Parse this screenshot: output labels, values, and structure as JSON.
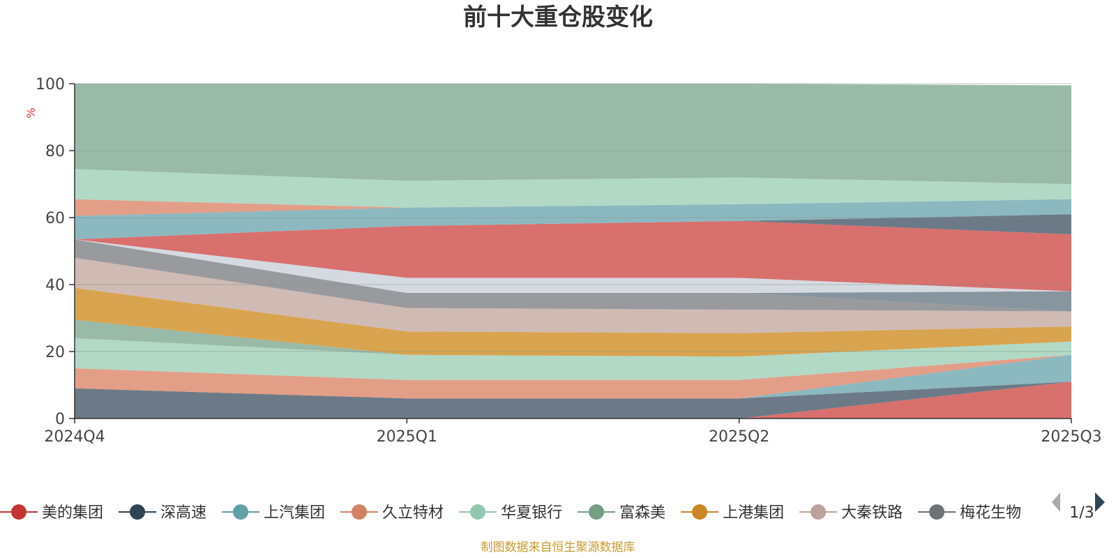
{
  "chart_data": {
    "type": "area",
    "title": "前十大重仓股变化",
    "ylabel": "%",
    "ylim": [
      0,
      100
    ],
    "yticks": [
      0,
      20,
      40,
      60,
      80,
      100
    ],
    "categories": [
      "2024Q4",
      "2025Q1",
      "2025Q2",
      "2025Q3"
    ],
    "series": [
      {
        "name": "美的集团",
        "color": "#d4605e",
        "values": [
          0,
          0,
          0,
          11
        ]
      },
      {
        "name": "深高速",
        "color": "#5b6c79",
        "values": [
          9,
          6,
          6,
          0
        ]
      },
      {
        "name": "上汽集团",
        "color": "#7fb0b9",
        "values": [
          0,
          0,
          0,
          8
        ]
      },
      {
        "name": "久立特材",
        "color": "#e0937a",
        "values": [
          6,
          5.5,
          5.5,
          0
        ]
      },
      {
        "name": "华夏银行",
        "color": "#a8d5c0",
        "values": [
          9,
          7.5,
          7,
          4
        ]
      },
      {
        "name": "富森美",
        "color": "#8fb29e",
        "values": [
          5.5,
          0,
          0,
          0
        ]
      },
      {
        "name": "上港集团",
        "color": "#d59a3c",
        "values": [
          9.5,
          7,
          7,
          4.5
        ]
      },
      {
        "name": "大秦铁路",
        "color": "#cbb3ac",
        "values": [
          9,
          7,
          7,
          4.5
        ]
      },
      {
        "name": "梅花生物",
        "color": "#6c737a",
        "values": [
          0,
          0,
          0,
          0
        ]
      },
      {
        "name": "",
        "color": "#8e8f93",
        "values": [
          5.5,
          4.5,
          5,
          0
        ]
      },
      {
        "name": "",
        "color": "#7a8a94",
        "values": [
          0,
          0,
          0,
          6
        ]
      },
      {
        "name": "",
        "color": "#d0d6de",
        "values": [
          0,
          4.5,
          4.5,
          0
        ]
      },
      {
        "name": "",
        "color": "#d4605e",
        "values": [
          0,
          15.5,
          17,
          17
        ]
      },
      {
        "name": "",
        "color": "#5b6c79",
        "values": [
          0,
          0,
          0,
          6
        ]
      },
      {
        "name": "",
        "color": "#7fb0b9",
        "values": [
          7,
          5.5,
          5,
          4.5
        ]
      },
      {
        "name": "",
        "color": "#e0937a",
        "values": [
          5,
          0,
          0,
          0
        ]
      },
      {
        "name": "",
        "color": "#a8d5c0",
        "values": [
          9,
          8,
          8,
          4.5
        ]
      },
      {
        "name": "",
        "color": "#8fb29e",
        "values": [
          25.5,
          29,
          28,
          29.5
        ]
      }
    ],
    "legend": {
      "position": "bottom",
      "items": [
        {
          "name": "美的集团",
          "color": "#c23531"
        },
        {
          "name": "深高速",
          "color": "#2f4554"
        },
        {
          "name": "上汽集团",
          "color": "#61a0a8"
        },
        {
          "name": "久立特材",
          "color": "#d48265"
        },
        {
          "name": "华夏银行",
          "color": "#91c7ae"
        },
        {
          "name": "富森美",
          "color": "#749f83"
        },
        {
          "name": "上港集团",
          "color": "#ca8622"
        },
        {
          "name": "大秦铁路",
          "color": "#bda29a"
        },
        {
          "name": "梅花生物",
          "color": "#6e7074"
        }
      ],
      "page_label": "1/3"
    },
    "grid": true
  },
  "source_note": "制图数据来自恒生聚源数据库"
}
